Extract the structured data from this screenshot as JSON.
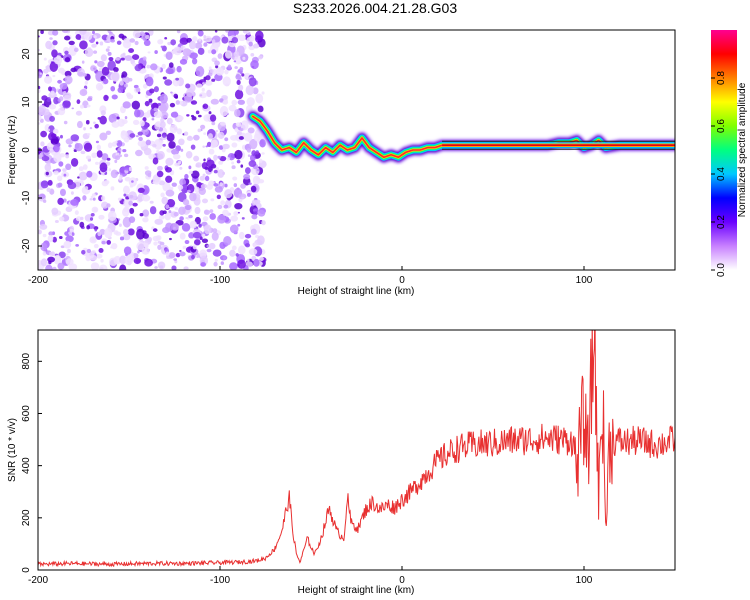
{
  "title": "S233.2026.004.21.28.G03",
  "chart_data": [
    {
      "type": "heatmap",
      "name": "spectrogram",
      "xlabel": "Height of straight line (km)",
      "ylabel": "Frequency (Hz)",
      "xlim": [
        -200,
        150
      ],
      "ylim": [
        -25,
        25
      ],
      "xticks": [
        -200,
        -100,
        0,
        100
      ],
      "yticks": [
        -20,
        -10,
        0,
        10,
        20
      ],
      "noise_region_x": [
        -200,
        -76
      ],
      "ridge": {
        "x": [
          -82,
          -78,
          -74,
          -70,
          -66,
          -62,
          -58,
          -54,
          -50,
          -46,
          -42,
          -38,
          -34,
          -30,
          -26,
          -22,
          -18,
          -14,
          -10,
          -6,
          -2,
          2,
          6,
          10,
          14,
          18,
          22,
          30,
          40,
          50,
          60,
          70,
          80,
          86,
          92,
          96,
          100,
          104,
          108,
          112,
          120,
          130,
          140,
          150
        ],
        "y": [
          7,
          6,
          4,
          1.5,
          0,
          0.5,
          -0.5,
          1.5,
          0,
          -1,
          0.5,
          -0.5,
          1,
          0,
          0.5,
          2.5,
          0.5,
          -0.5,
          -1.5,
          -1,
          -1.5,
          -0.5,
          0,
          0,
          0.5,
          0.5,
          1,
          1,
          1,
          1,
          1,
          1,
          1,
          1.5,
          1.5,
          2,
          0.5,
          1,
          2,
          0.5,
          1,
          1,
          1,
          1
        ]
      },
      "colorbar": {
        "label": "Normalized spectral amplitude",
        "ticks": [
          0.0,
          0.2,
          0.4,
          0.6,
          0.8
        ],
        "range": [
          0,
          1
        ],
        "colors": [
          "#ffffff",
          "#c880ff",
          "#6a00ff",
          "#0000ff",
          "#00c8ff",
          "#00ff80",
          "#80ff00",
          "#ffff00",
          "#ff8000",
          "#ff0000",
          "#ff0090"
        ]
      }
    },
    {
      "type": "line",
      "name": "snr",
      "xlabel": "Height of straight line (km)",
      "ylabel": "SNR (10 * v/v)",
      "xlim": [
        -200,
        150
      ],
      "ylim": [
        0,
        920
      ],
      "xticks": [
        -200,
        -100,
        0,
        100
      ],
      "yticks": [
        0,
        200,
        400,
        600,
        800
      ],
      "color": "#e83030",
      "series": [
        {
          "name": "SNR",
          "x": [
            -200,
            -180,
            -160,
            -140,
            -120,
            -100,
            -90,
            -80,
            -75,
            -70,
            -66,
            -62,
            -60,
            -58,
            -56,
            -52,
            -48,
            -44,
            -40,
            -36,
            -32,
            -30,
            -28,
            -24,
            -20,
            -16,
            -12,
            -8,
            -4,
            0,
            5,
            10,
            15,
            20,
            25,
            30,
            40,
            50,
            60,
            70,
            80,
            88,
            94,
            96,
            98,
            100,
            102,
            104,
            106,
            108,
            110,
            112,
            114,
            116,
            118,
            122,
            130,
            140,
            150
          ],
          "y": [
            22,
            25,
            22,
            25,
            25,
            28,
            30,
            35,
            45,
            80,
            150,
            280,
            150,
            60,
            30,
            120,
            60,
            130,
            240,
            150,
            120,
            280,
            180,
            160,
            230,
            260,
            230,
            250,
            240,
            270,
            300,
            340,
            380,
            420,
            445,
            465,
            480,
            485,
            495,
            500,
            505,
            500,
            495,
            380,
            500,
            600,
            420,
            700,
            900,
            250,
            720,
            150,
            500,
            490,
            495,
            490,
            495,
            480,
            500
          ]
        }
      ]
    }
  ]
}
